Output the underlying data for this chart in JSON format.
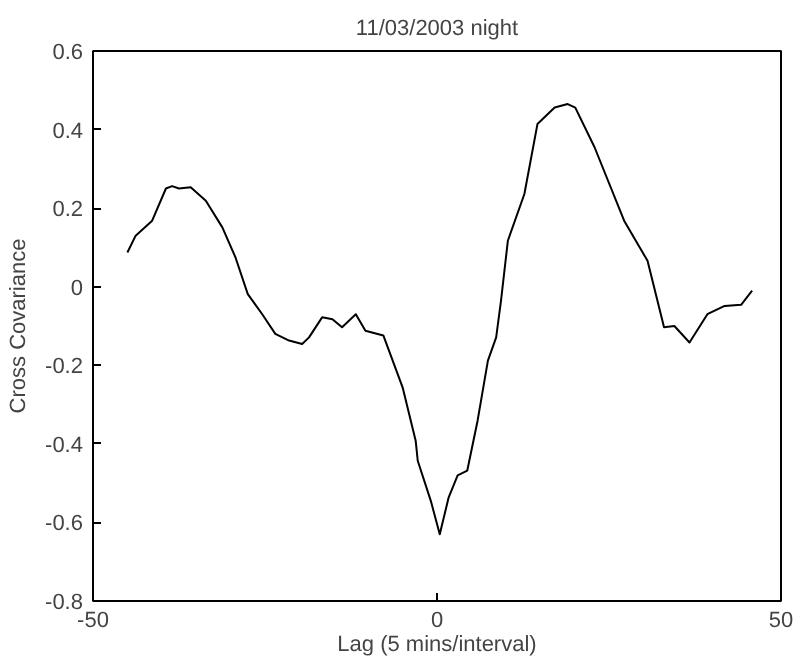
{
  "chart_data": {
    "type": "line",
    "title": "11/03/2003 night",
    "xlabel": "Lag (5 mins/interval)",
    "ylabel": "Cross Covariance",
    "x": [
      -45,
      -43.8,
      -41.4,
      -39.4,
      -38.5,
      -37.5,
      -35.8,
      -33.6,
      -31.2,
      -29.3,
      -27.5,
      -25.4,
      -23.5,
      -21.5,
      -19.6,
      -18.6,
      -16.7,
      -15.2,
      -13.8,
      -11.8,
      -10.4,
      -7.8,
      -5.0,
      -3.1,
      -2.8,
      -0.9,
      0.4,
      1.7,
      3.0,
      4.4,
      5.9,
      7.4,
      8.6,
      9.3,
      10.3,
      12.7,
      14.6,
      17.1,
      19.0,
      20.1,
      22.9,
      27.2,
      30.6,
      33.0,
      34.5,
      36.7,
      39.3,
      41.8,
      44.2,
      45.8
    ],
    "series": [
      {
        "color": "#000000",
        "values": [
          0.087,
          0.13,
          0.168,
          0.25,
          0.256,
          0.25,
          0.253,
          0.219,
          0.151,
          0.075,
          -0.019,
          -0.07,
          -0.12,
          -0.137,
          -0.146,
          -0.129,
          -0.078,
          -0.083,
          -0.103,
          -0.07,
          -0.112,
          -0.124,
          -0.256,
          -0.392,
          -0.443,
          -0.545,
          -0.63,
          -0.536,
          -0.48,
          -0.468,
          -0.341,
          -0.188,
          -0.129,
          -0.036,
          0.117,
          0.236,
          0.414,
          0.456,
          0.465,
          0.456,
          0.355,
          0.168,
          0.066,
          -0.103,
          -0.1,
          -0.142,
          -0.07,
          -0.049,
          -0.046,
          -0.01
        ]
      }
    ],
    "xlim": [
      -50,
      50
    ],
    "xticks": [
      -50,
      0,
      50
    ],
    "ylim": [
      -0.8,
      0.6
    ],
    "yticks": [
      -0.8,
      -0.6,
      -0.4,
      -0.2,
      0,
      0.2,
      0.4,
      0.6
    ],
    "grid": false
  }
}
